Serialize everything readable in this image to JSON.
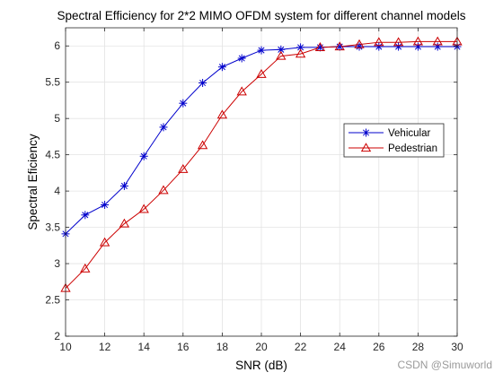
{
  "chart_data": {
    "type": "line",
    "title": "Spectral Efficiency for 2*2 MIMO OFDM system for different channel models",
    "xlabel": "SNR  (dB)",
    "ylabel": "Spectral Eficiency",
    "xlim": [
      10,
      30
    ],
    "ylim": [
      2,
      6.25
    ],
    "xticks": [
      10,
      12,
      14,
      16,
      18,
      20,
      22,
      24,
      26,
      28,
      30
    ],
    "yticks": [
      2,
      2.5,
      3,
      3.5,
      4,
      4.5,
      5,
      5.5,
      6
    ],
    "ytick_labels": [
      "2",
      "2.5",
      "3",
      "3.5",
      "4",
      "4.5",
      "5",
      "5.5",
      "6"
    ],
    "grid": true,
    "legend_position": "center-right",
    "x": [
      10,
      11,
      12,
      13,
      14,
      15,
      16,
      17,
      18,
      19,
      20,
      21,
      22,
      23,
      24,
      25,
      26,
      27,
      28,
      29,
      30
    ],
    "series": [
      {
        "name": "Vehicular",
        "color": "#0000cc",
        "marker": "asterisk",
        "values": [
          3.41,
          3.67,
          3.81,
          4.07,
          4.48,
          4.88,
          5.21,
          5.49,
          5.71,
          5.83,
          5.94,
          5.95,
          5.98,
          5.98,
          5.99,
          5.99,
          5.99,
          5.99,
          5.99,
          5.99,
          5.99
        ]
      },
      {
        "name": "Pedestrian",
        "color": "#cc0000",
        "marker": "triangle",
        "values": [
          2.66,
          2.93,
          3.29,
          3.55,
          3.75,
          4.01,
          4.3,
          4.63,
          5.05,
          5.37,
          5.61,
          5.86,
          5.89,
          5.98,
          5.99,
          6.02,
          6.05,
          6.05,
          6.06,
          6.06,
          6.06
        ]
      }
    ]
  },
  "watermark": "CSDN @Simuworld"
}
